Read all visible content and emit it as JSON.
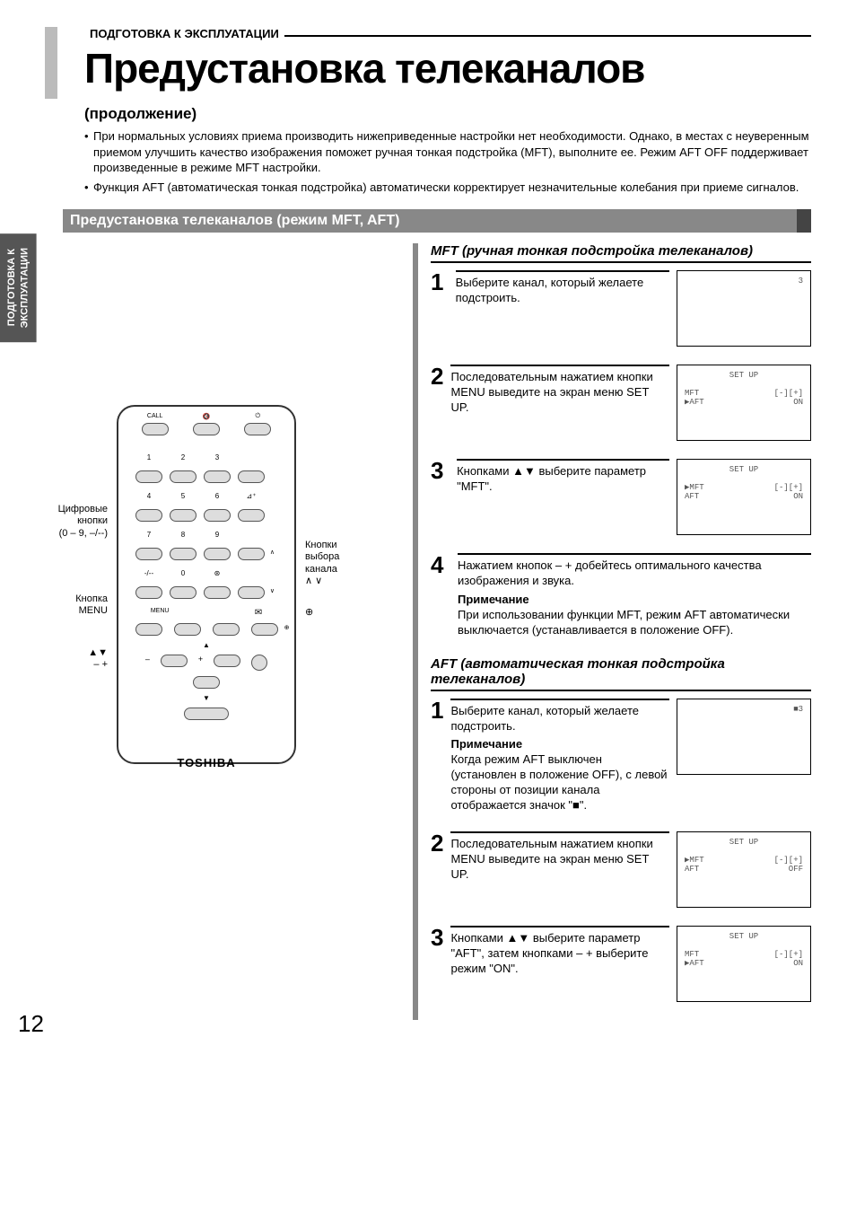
{
  "page_number": "12",
  "side_tab": "ПОДГОТОВКА К\nЭКСПЛУАТАЦИИ",
  "kicker": "ПОДГОТОВКА К ЭКСПЛУАТАЦИИ",
  "title": "Предустановка телеканалов",
  "subtitle": "(продолжение)",
  "bullets": [
    "При нормальных условиях приема производить нижеприведенные настройки нет необходимости. Однако, в местах с неуверенным приемом улучшить качество изображения поможет ручная тонкая подстройка (MFT), выполните ее. Режим AFT OFF поддерживает произведенные в режиме MFT настройки.",
    "Функция AFT (автоматическая тонкая подстройка) автоматически корректирует незначительные колебания при приеме сигналов."
  ],
  "section_bar": "Предустановка телеканалов (режим MFT, AFT)",
  "callouts": {
    "digital": "Цифровые\nкнопки\n(0 – 9, –/--)",
    "menu": "Кнопка\nMENU",
    "arrows": "▲▼\n– +",
    "chan": "Кнопки\nвыбора\nканала\n∧ ∨",
    "ent": "⊕"
  },
  "remote": {
    "top_labels": [
      "CALL",
      "",
      ""
    ],
    "brand": "TOSHIBA",
    "menu_label": "MENU"
  },
  "mft": {
    "heading": "MFT (ручная тонкая подстройка телеканалов)",
    "steps": [
      {
        "n": "1",
        "text": "Выберите канал, который желаете подстроить.",
        "osd": {
          "lines": [
            {
              "r": "3"
            }
          ]
        }
      },
      {
        "n": "2",
        "text": "Последовательным нажатием кнопки MENU выведите на экран меню SET UP.",
        "osd": {
          "title": "SET UP",
          "lines": [
            {
              "l": " MFT",
              "r": "[-][+]"
            },
            {
              "l": "▶AFT",
              "r": "ON"
            }
          ]
        }
      },
      {
        "n": "3",
        "text": "Кнопками ▲▼ выберите параметр \"MFT\".",
        "osd": {
          "title": "SET UP",
          "lines": [
            {
              "l": "▶MFT",
              "r": "[-][+]"
            },
            {
              "l": " AFT",
              "r": "ON"
            }
          ]
        }
      },
      {
        "n": "4",
        "text": "Нажатием кнопок – + добейтесь оптимального качества изображения и звука.",
        "note_label": "Примечание",
        "note": "При использовании функции MFT, режим AFT автоматически выключается (устанавливается в положение OFF)."
      }
    ]
  },
  "aft": {
    "heading": "AFT (автоматическая тонкая подстройка телеканалов)",
    "steps": [
      {
        "n": "1",
        "text": "Выберите канал, который желаете подстроить.",
        "note_label": "Примечание",
        "note": "Когда режим AFT выключен (установлен в положение OFF), с левой стороны от позиции канала отображается значок \"■\".",
        "osd": {
          "lines": [
            {
              "r": "■3"
            }
          ]
        }
      },
      {
        "n": "2",
        "text": "Последовательным нажатием кнопки MENU выведите на экран меню SET UP.",
        "osd": {
          "title": "SET UP",
          "lines": [
            {
              "l": "▶MFT",
              "r": "[-][+]"
            },
            {
              "l": " AFT",
              "r": "OFF"
            }
          ]
        }
      },
      {
        "n": "3",
        "text": "Кнопками ▲▼ выберите параметр \"AFT\", затем кнопками – + выберите режим \"ON\".",
        "osd": {
          "title": "SET UP",
          "lines": [
            {
              "l": " MFT",
              "r": "[-][+]"
            },
            {
              "l": "▶AFT",
              "r": "ON"
            }
          ]
        }
      }
    ]
  }
}
